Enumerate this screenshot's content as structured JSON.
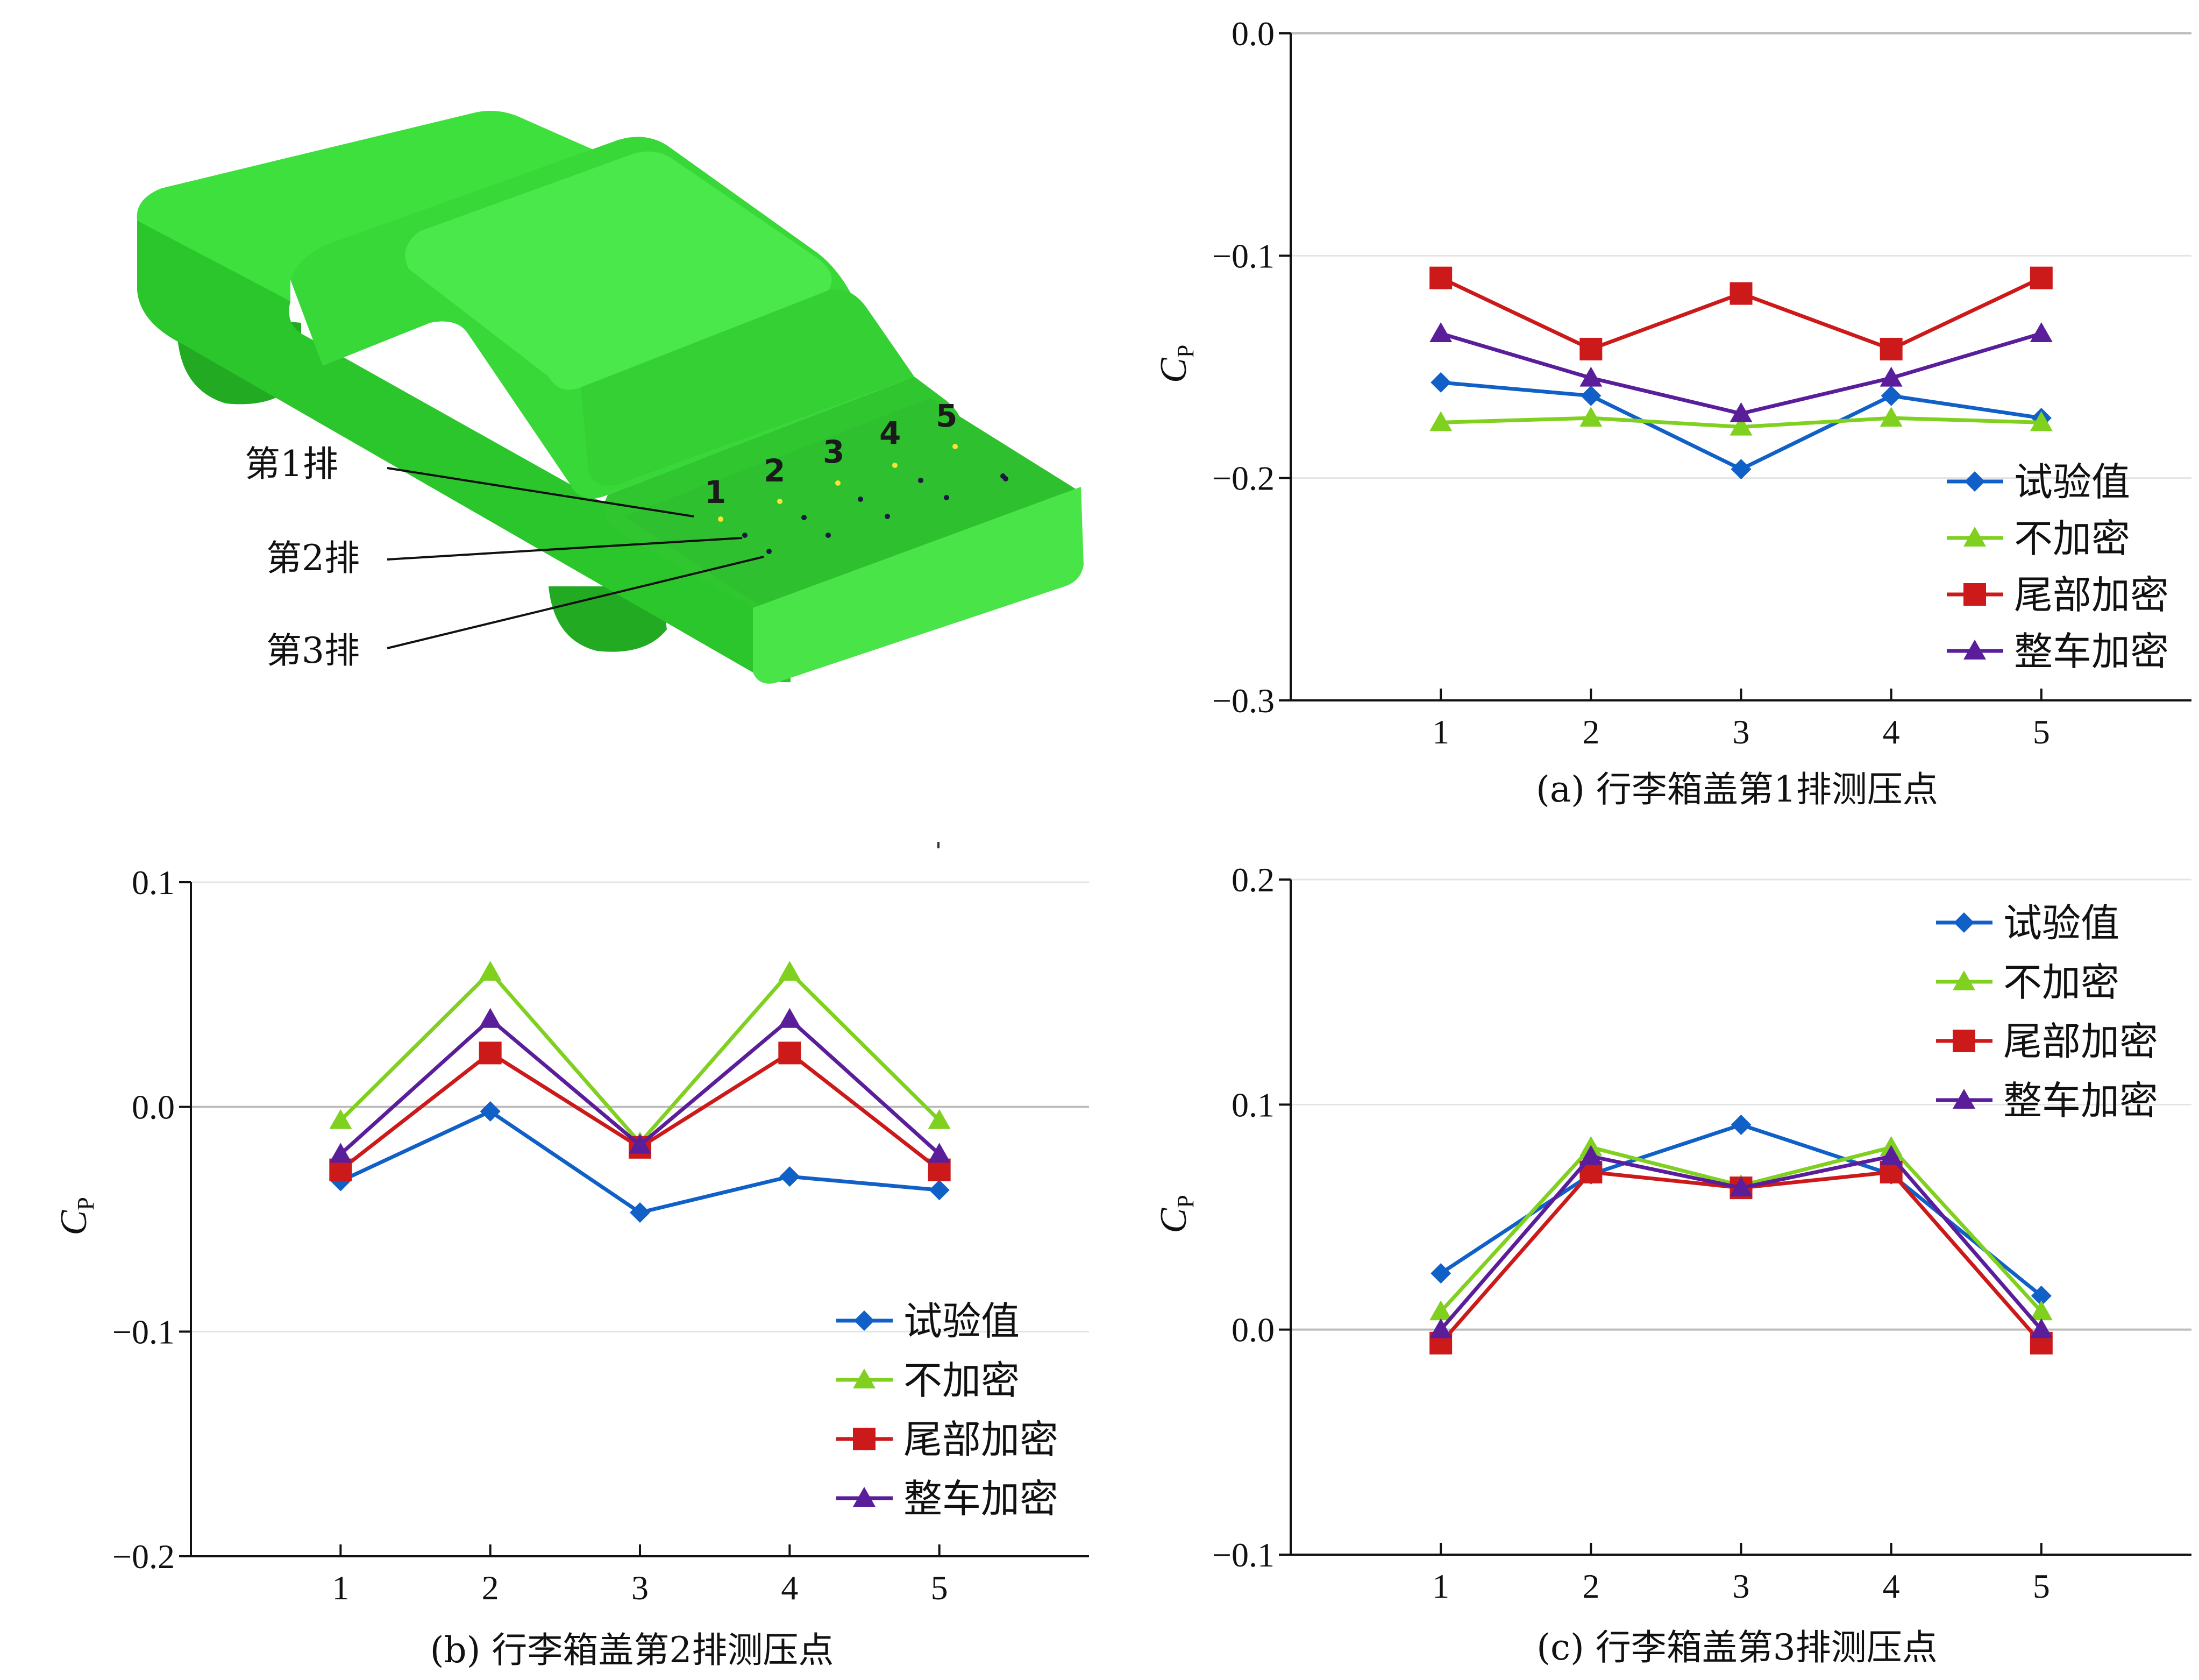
{
  "car_illustration": {
    "row_labels": [
      "第1排",
      "第2排",
      "第3排"
    ],
    "point_numbers": [
      "1",
      "2",
      "3",
      "4",
      "5"
    ],
    "body_color": "#33dd33",
    "point_color": "#ffe033"
  },
  "legend_series": [
    "试验值",
    "不加密",
    "尾部加密",
    "整车加密"
  ],
  "series_colors": [
    "#1060c8",
    "#80d020",
    "#cc1a1a",
    "#5a1e9a"
  ],
  "series_markers": [
    "diamond",
    "triangle",
    "square",
    "triangle"
  ],
  "chart_data": [
    {
      "type": "line",
      "caption": "(a) 行李箱盖第1排测压点",
      "ylabel": "C",
      "ylabel_sub": "P",
      "x": [
        1,
        2,
        3,
        4,
        5
      ],
      "xlim": [
        0,
        6
      ],
      "ylim": [
        -0.3,
        0.0
      ],
      "yticks": [
        "0.0",
        "−0.1",
        "−0.2",
        "−0.3"
      ],
      "ytick_values": [
        0.0,
        -0.1,
        -0.2,
        -0.3
      ],
      "grid": true,
      "legend_position": "bottom-right",
      "series": [
        {
          "name": "试验值",
          "values": [
            -0.157,
            -0.163,
            -0.196,
            -0.163,
            -0.173
          ]
        },
        {
          "name": "不加密",
          "values": [
            -0.175,
            -0.173,
            -0.177,
            -0.173,
            -0.175
          ]
        },
        {
          "name": "尾部加密",
          "values": [
            -0.11,
            -0.142,
            -0.117,
            -0.142,
            -0.11
          ]
        },
        {
          "name": "整车加密",
          "values": [
            -0.135,
            -0.155,
            -0.171,
            -0.155,
            -0.135
          ]
        }
      ]
    },
    {
      "type": "line",
      "caption": "(b) 行李箱盖第2排测压点",
      "ylabel": "C",
      "ylabel_sub": "P",
      "x": [
        1,
        2,
        3,
        4,
        5
      ],
      "xlim": [
        0,
        6
      ],
      "ylim": [
        -0.2,
        0.1
      ],
      "yticks": [
        "0.1",
        "0.0",
        "−0.1",
        "−0.2"
      ],
      "ytick_values": [
        0.1,
        0.0,
        -0.1,
        -0.2
      ],
      "grid": true,
      "legend_position": "bottom-right",
      "series": [
        {
          "name": "试验值",
          "values": [
            -0.033,
            -0.002,
            -0.047,
            -0.031,
            -0.037
          ]
        },
        {
          "name": "不加密",
          "values": [
            -0.006,
            0.06,
            -0.016,
            0.06,
            -0.006
          ]
        },
        {
          "name": "尾部加密",
          "values": [
            -0.028,
            0.024,
            -0.018,
            0.024,
            -0.028
          ]
        },
        {
          "name": "整车加密",
          "values": [
            -0.021,
            0.039,
            -0.017,
            0.039,
            -0.021
          ]
        }
      ]
    },
    {
      "type": "line",
      "caption": "(c) 行李箱盖第3排测压点",
      "ylabel": "C",
      "ylabel_sub": "P",
      "x": [
        1,
        2,
        3,
        4,
        5
      ],
      "xlim": [
        0,
        6
      ],
      "ylim": [
        -0.1,
        0.2
      ],
      "yticks": [
        "0.2",
        "0.1",
        "0.0",
        "−0.1"
      ],
      "ytick_values": [
        0.2,
        0.1,
        0.0,
        -0.1
      ],
      "grid": true,
      "legend_position": "top-right",
      "series": [
        {
          "name": "试验值",
          "values": [
            0.025,
            0.069,
            0.091,
            0.069,
            0.015
          ]
        },
        {
          "name": "不加密",
          "values": [
            0.008,
            0.081,
            0.064,
            0.081,
            0.008
          ]
        },
        {
          "name": "尾部加密",
          "values": [
            -0.006,
            0.07,
            0.063,
            0.07,
            -0.006
          ]
        },
        {
          "name": "整车加密",
          "values": [
            0.0,
            0.077,
            0.063,
            0.077,
            0.0
          ]
        }
      ]
    }
  ]
}
